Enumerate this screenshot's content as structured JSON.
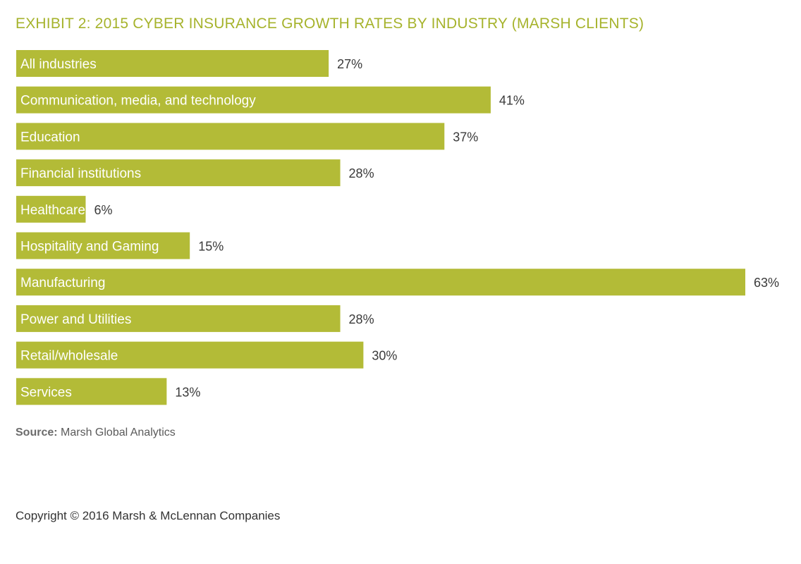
{
  "colors": {
    "bar": "#b3bb37",
    "title": "#a6b32c",
    "value_text": "#3a3a3a",
    "bar_text": "#ffffff"
  },
  "chart_data": {
    "type": "bar",
    "orientation": "horizontal",
    "title": "EXHIBIT 2: 2015 CYBER INSURANCE GROWTH RATES BY INDUSTRY (MARSH CLIENTS)",
    "categories": [
      "All industries",
      "Communication, media, and technology",
      "Education",
      "Financial institutions",
      "Healthcare",
      "Hospitality and Gaming",
      "Manufacturing",
      "Power and Utilities",
      "Retail/wholesale",
      "Services"
    ],
    "values": [
      27,
      41,
      37,
      28,
      6,
      15,
      63,
      28,
      30,
      13
    ],
    "value_labels": [
      "27%",
      "41%",
      "37%",
      "28%",
      "6%",
      "15%",
      "63%",
      "28%",
      "30%",
      "13%"
    ],
    "xlim": [
      0,
      63
    ],
    "grid": false,
    "legend": "none"
  },
  "footer": {
    "source_label": "Source:",
    "source_text": " Marsh Global Analytics",
    "copyright": "Copyright © 2016 Marsh & McLennan Companies"
  }
}
